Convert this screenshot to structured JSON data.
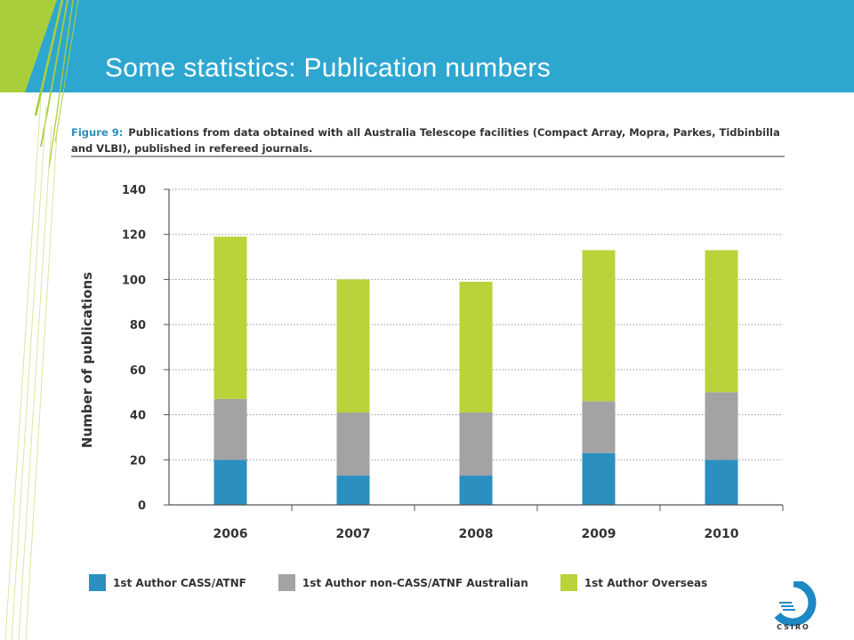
{
  "slide": {
    "title": "Some statistics: Publication numbers"
  },
  "figure": {
    "label": "Figure 9:",
    "caption": "Publications from data obtained with all Australia Telescope facilities (Compact Array, Mopra, Parkes, Tidbinbilla and VLBI), published in refereed journals."
  },
  "logo": {
    "text": "CSIRO"
  },
  "colors": {
    "banner": "#2ea7d0",
    "stripes": "#a8cf3a",
    "series_cass": "#2b8fbf",
    "series_non_cass": "#a3a3a3",
    "series_overseas": "#b9d33a"
  },
  "chart_data": {
    "type": "bar",
    "stacked": true,
    "categories": [
      "2006",
      "2007",
      "2008",
      "2009",
      "2010"
    ],
    "series": [
      {
        "name": "1st Author CASS/ATNF",
        "color": "#2b8fbf",
        "values": [
          20,
          13,
          13,
          23,
          20
        ]
      },
      {
        "name": "1st Author non-CASS/ATNF Australian",
        "color": "#a3a3a3",
        "values": [
          27,
          28,
          28,
          23,
          30
        ]
      },
      {
        "name": "1st Author Overseas",
        "color": "#b9d33a",
        "values": [
          72,
          59,
          58,
          67,
          63
        ]
      }
    ],
    "ylabel": "Number of publications",
    "ylim": [
      0,
      140
    ],
    "yticks": [
      0,
      20,
      40,
      60,
      80,
      100,
      120,
      140
    ],
    "grid": true,
    "legend": "bottom"
  }
}
